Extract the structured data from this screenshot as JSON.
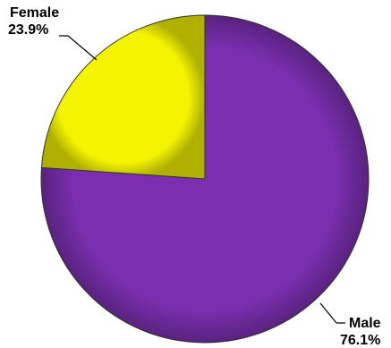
{
  "chart_data": {
    "type": "pie",
    "title": "",
    "slices": [
      {
        "name": "Male",
        "value": 76.1,
        "value_label": "76.1%",
        "color": "#7B2FB0",
        "label_position": "bottom-right"
      },
      {
        "name": "Female",
        "value": 23.9,
        "value_label": "23.9%",
        "color": "#F4F400",
        "label_position": "top-left"
      }
    ],
    "start_angle_deg": 0,
    "direction": "clockwise",
    "legend": "none"
  }
}
